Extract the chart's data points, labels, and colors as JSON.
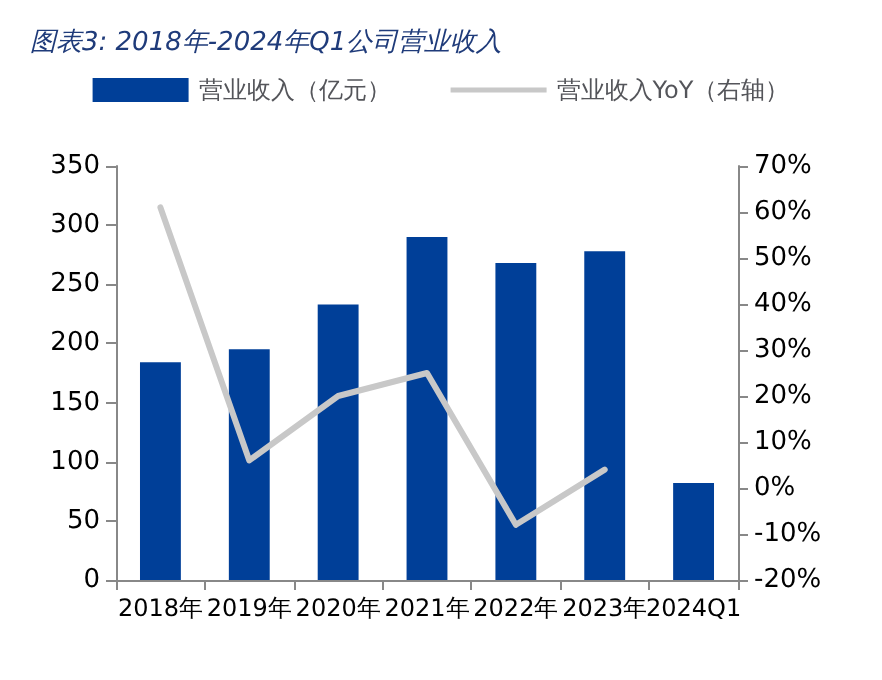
{
  "chart_data": {
    "type": "bar",
    "title": "图表3: 2018年-2024年Q1公司营业收入",
    "categories": [
      "2018年",
      "2019年",
      "2020年",
      "2021年",
      "2022年",
      "2023年",
      "2024Q1"
    ],
    "series": [
      {
        "name": "营业收入（亿元）",
        "color": "#003f98",
        "values": [
          184,
          195,
          233,
          290,
          268,
          278,
          82
        ]
      },
      {
        "name": "营业收入YoY（右轴）",
        "type": "line",
        "axis": "y2",
        "color": "#c8c8c8",
        "values": [
          61,
          6,
          20,
          25,
          -8,
          4,
          null
        ]
      }
    ],
    "ylim": [
      0,
      350
    ],
    "yticks": [
      0,
      50,
      100,
      150,
      200,
      250,
      300,
      350
    ],
    "y2lim": [
      -20,
      70
    ],
    "y2ticks": [
      {
        "value": -20,
        "label": "-20%"
      },
      {
        "value": -10,
        "label": "-10%"
      },
      {
        "value": 0,
        "label": "0%"
      },
      {
        "value": 10,
        "label": "10%"
      },
      {
        "value": 20,
        "label": "20%"
      },
      {
        "value": 30,
        "label": "30%"
      },
      {
        "value": 40,
        "label": "40%"
      },
      {
        "value": 50,
        "label": "50%"
      },
      {
        "value": 60,
        "label": "60%"
      },
      {
        "value": 70,
        "label": "70%"
      }
    ],
    "legend": "top",
    "marker": "none",
    "grid": false
  }
}
